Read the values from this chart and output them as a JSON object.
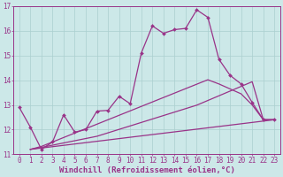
{
  "xlabel": "Windchill (Refroidissement éolien,°C)",
  "ylabel": "",
  "background_color": "#cce8e8",
  "grid_color": "#aacfcf",
  "line_color": "#993388",
  "xlim": [
    -0.5,
    23.5
  ],
  "ylim": [
    11,
    17
  ],
  "yticks": [
    11,
    12,
    13,
    14,
    15,
    16,
    17
  ],
  "xticks": [
    0,
    1,
    2,
    3,
    4,
    5,
    6,
    7,
    8,
    9,
    10,
    11,
    12,
    13,
    14,
    15,
    16,
    17,
    18,
    19,
    20,
    21,
    22,
    23
  ],
  "line1_x": [
    0,
    1,
    2,
    3,
    4,
    5,
    6,
    7,
    8,
    9,
    10,
    11,
    12,
    13,
    14,
    15,
    16,
    17,
    18,
    19,
    20,
    21,
    22,
    23
  ],
  "line1_y": [
    12.9,
    12.1,
    11.2,
    11.5,
    12.6,
    11.9,
    12.0,
    12.75,
    12.78,
    13.35,
    13.05,
    15.1,
    16.2,
    15.9,
    16.05,
    16.1,
    16.85,
    16.55,
    14.85,
    14.2,
    13.85,
    13.1,
    12.4,
    12.4
  ],
  "line2_x": [
    1,
    2,
    3,
    4,
    5,
    6,
    7,
    8,
    9,
    10,
    11,
    12,
    13,
    14,
    15,
    16,
    17,
    18,
    19,
    20,
    21,
    22,
    23
  ],
  "line2_y": [
    11.2,
    11.28,
    11.37,
    11.46,
    11.55,
    11.64,
    11.73,
    11.87,
    12.01,
    12.15,
    12.29,
    12.43,
    12.57,
    12.71,
    12.85,
    12.99,
    13.18,
    13.37,
    13.56,
    13.75,
    13.94,
    12.4,
    12.4
  ],
  "line3_x": [
    1,
    2,
    3,
    4,
    5,
    6,
    7,
    8,
    9,
    10,
    11,
    12,
    13,
    14,
    15,
    16,
    17,
    18,
    19,
    20,
    21,
    22,
    23
  ],
  "line3_y": [
    11.2,
    11.32,
    11.5,
    11.68,
    11.86,
    12.04,
    12.22,
    12.4,
    12.58,
    12.76,
    12.94,
    13.12,
    13.3,
    13.48,
    13.66,
    13.84,
    14.02,
    13.85,
    13.65,
    13.45,
    13.0,
    12.4,
    12.4
  ],
  "line4_x": [
    1,
    23
  ],
  "line4_y": [
    11.2,
    12.4
  ],
  "fontsize_ticks": 5.5,
  "fontsize_xlabel": 6.5,
  "marker": "D",
  "markersize": 2.0,
  "linewidth": 0.9
}
